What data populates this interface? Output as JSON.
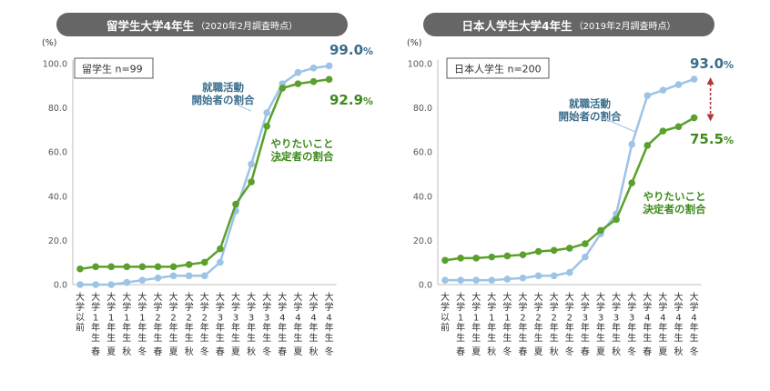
{
  "chart_data": [
    {
      "type": "line",
      "title": "留学生大学4年生",
      "subtitle": "（2020年2月調査時点）",
      "ylabel": "(%)",
      "ylim": [
        0,
        100
      ],
      "yticks": [
        "0.0",
        "20.0",
        "40.0",
        "60.0",
        "80.0",
        "100.0"
      ],
      "sample_label": "留学生 n=99",
      "categories": [
        {
          "year": "大学以前",
          "season": ""
        },
        {
          "year": "大学1年生",
          "season": "春"
        },
        {
          "year": "大学1年生",
          "season": "夏"
        },
        {
          "year": "大学1年生",
          "season": "秋"
        },
        {
          "year": "大学1年生",
          "season": "冬"
        },
        {
          "year": "大学2年生",
          "season": "春"
        },
        {
          "year": "大学2年生",
          "season": "夏"
        },
        {
          "year": "大学2年生",
          "season": "秋"
        },
        {
          "year": "大学2年生",
          "season": "冬"
        },
        {
          "year": "大学3年生",
          "season": "春"
        },
        {
          "year": "大学3年生",
          "season": "夏"
        },
        {
          "year": "大学3年生",
          "season": "秋"
        },
        {
          "year": "大学3年生",
          "season": "冬"
        },
        {
          "year": "大学4年生",
          "season": "春"
        },
        {
          "year": "大学4年生",
          "season": "夏"
        },
        {
          "year": "大学4年生",
          "season": "秋"
        },
        {
          "year": "大学4年生",
          "season": "冬"
        }
      ],
      "series": [
        {
          "name": "就職活動開始者の割合",
          "label_lines": [
            "就職活動",
            "開始者の割合"
          ],
          "color": "#9dc3e6",
          "values": [
            0.0,
            0.0,
            0.0,
            1.0,
            2.0,
            3.0,
            4.0,
            4.0,
            4.0,
            10.1,
            33.3,
            54.5,
            77.8,
            90.9,
            96.0,
            98.0,
            99.0
          ],
          "end_label": "99.0",
          "end_unit": "%",
          "end_color": "#3a6d8c"
        },
        {
          "name": "やりたいこと決定者の割合",
          "label_lines": [
            "やりたいこと",
            "決定者の割合"
          ],
          "color": "#5aa02c",
          "values": [
            7.1,
            8.1,
            8.1,
            8.1,
            8.1,
            8.1,
            8.1,
            9.1,
            10.1,
            16.2,
            36.4,
            46.5,
            71.7,
            88.9,
            90.9,
            91.9,
            92.9
          ],
          "end_label": "92.9",
          "end_unit": "%",
          "end_color": "#3f8a1e"
        }
      ]
    },
    {
      "type": "line",
      "title": "日本人学生大学4年生",
      "subtitle": "（2019年2月調査時点）",
      "ylabel": "(%)",
      "ylim": [
        0,
        100
      ],
      "yticks": [
        "0.0",
        "20.0",
        "40.0",
        "60.0",
        "80.0",
        "100.0"
      ],
      "sample_label": "日本人学生 n=200",
      "categories": [
        {
          "year": "大学以前",
          "season": ""
        },
        {
          "year": "大学1年生",
          "season": "春"
        },
        {
          "year": "大学1年生",
          "season": "夏"
        },
        {
          "year": "大学1年生",
          "season": "秋"
        },
        {
          "year": "大学1年生",
          "season": "冬"
        },
        {
          "year": "大学2年生",
          "season": "春"
        },
        {
          "year": "大学2年生",
          "season": "夏"
        },
        {
          "year": "大学2年生",
          "season": "秋"
        },
        {
          "year": "大学2年生",
          "season": "冬"
        },
        {
          "year": "大学3年生",
          "season": "春"
        },
        {
          "year": "大学3年生",
          "season": "夏"
        },
        {
          "year": "大学3年生",
          "season": "秋"
        },
        {
          "year": "大学3年生",
          "season": "冬"
        },
        {
          "year": "大学4年生",
          "season": "春"
        },
        {
          "year": "大学4年生",
          "season": "夏"
        },
        {
          "year": "大学4年生",
          "season": "秋"
        },
        {
          "year": "大学4年生",
          "season": "冬"
        }
      ],
      "series": [
        {
          "name": "就職活動開始者の割合",
          "label_lines": [
            "就職活動",
            "開始者の割合"
          ],
          "color": "#9dc3e6",
          "values": [
            2.0,
            2.0,
            2.0,
            2.0,
            2.5,
            3.0,
            4.0,
            4.0,
            5.5,
            12.5,
            23.0,
            32.0,
            63.5,
            85.5,
            88.0,
            90.5,
            93.0
          ],
          "end_label": "93.0",
          "end_unit": "%",
          "end_color": "#3a6d8c"
        },
        {
          "name": "やりたいこと決定者の割合",
          "label_lines": [
            "やりたいこと",
            "決定者の割合"
          ],
          "color": "#5aa02c",
          "values": [
            11.0,
            12.0,
            12.0,
            12.5,
            13.0,
            13.5,
            15.0,
            15.5,
            16.5,
            18.5,
            24.5,
            29.5,
            46.0,
            63.0,
            69.5,
            71.5,
            75.5
          ],
          "end_label": "75.5",
          "end_unit": "%",
          "end_color": "#3f8a1e"
        }
      ],
      "gap_arrow_color": "#b23a3a"
    }
  ]
}
